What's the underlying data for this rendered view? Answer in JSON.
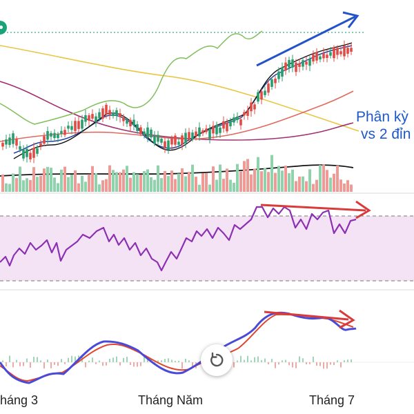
{
  "annotation": {
    "line1": "Phân kỳ",
    "line2": "vs 2 đỉn"
  },
  "x_axis": {
    "labels": [
      "háng 3",
      "Tháng Năm",
      "Tháng 7"
    ]
  },
  "controls": {
    "reset_icon": "reset-rotate-icon",
    "marker_icon": "green-dot-marker-icon"
  },
  "colors": {
    "up_candle": "#e14b45",
    "down_candle": "#2a9d6f",
    "volume_up": "#ef9a94",
    "volume_down": "#8fd3ad",
    "rsi_line": "#8b2fb3",
    "rsi_band": "#f4e3f5",
    "macd_line": "#4a4ad8",
    "signal_line": "#e0462f",
    "arrow_blue": "#2452c8",
    "arrow_red": "#d93a3a",
    "annotation_text": "#1e58c8"
  }
}
